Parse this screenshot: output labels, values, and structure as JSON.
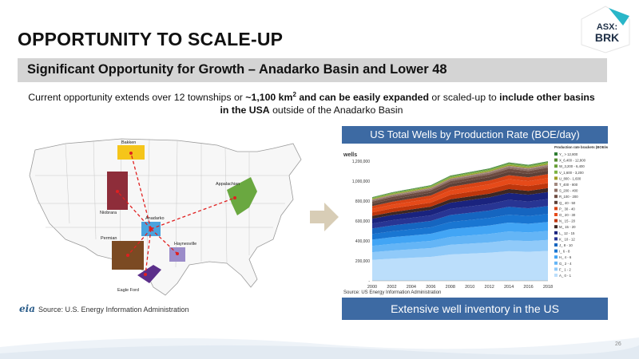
{
  "slide": {
    "title": "OPPORTUNITY TO SCALE-UP",
    "subtitle": "Significant Opportunity for Growth – Anadarko Basin and Lower 48",
    "intro_parts": {
      "p1": "Current opportunity extends over 12 townships or ",
      "b1": "~1,100 km",
      "sup": "2",
      "b2": " and can be easily expanded",
      "p2": " or scaled-up to ",
      "b3": "include other basins in the USA",
      "p3": " outside of the Anadarko Basin"
    },
    "logo": {
      "line1": "ASX:",
      "line2": "BRK"
    },
    "page_number": "26"
  },
  "map": {
    "basins": [
      "Bakken",
      "Niobrara",
      "Appalachian",
      "Anadarko",
      "Permian",
      "Haynesville",
      "Eagle Ford"
    ],
    "source": "Source: U.S. Energy Information Administration",
    "source_logo": "eia"
  },
  "chart_data": {
    "type": "area",
    "title": "US Total Wells by Production Rate (BOE/day)",
    "ylabel": "wells",
    "x": [
      2000,
      2002,
      2004,
      2006,
      2008,
      2010,
      2012,
      2014,
      2016,
      2018
    ],
    "x_ticks": [
      "2000",
      "2002",
      "2004",
      "2006",
      "2008",
      "2010",
      "2012",
      "2014",
      "2016",
      "2018"
    ],
    "ylim": [
      0,
      1200000
    ],
    "y_ticks": [
      "-",
      "200,000",
      "400,000",
      "600,000",
      "800,000",
      "1,000,000",
      "1,200,000"
    ],
    "legend_title": "Production rate brackets (BOE/well/day)",
    "legend": [
      "Y_ > 12,800",
      "X_6,400 - 12,800",
      "W_3,200 - 6,400",
      "V_1,600 - 3,200",
      "U_800 - 1,600",
      "T_400 - 800",
      "S_200 - 400",
      "R_100 - 200",
      "Q_ 40 - 50",
      "P_ 30 - 40",
      "O_ 20 - 30",
      "N_ 15 - 20",
      "M_ 15 - 20",
      "L_ 12 - 15",
      "K_ 10 - 12",
      "J_ 8 - 10",
      "I_ 6 - 8",
      "H_ 4 - 6",
      "G_ 2 - 4",
      "F_ 1 - 2",
      "A_ 0 - 1"
    ],
    "totals": [
      700000,
      740000,
      770000,
      800000,
      880000,
      910000,
      940000,
      990000,
      970000,
      1000000
    ],
    "source": "Source: US Energy Information Administration",
    "callout": "Extensive well inventory in the US"
  },
  "colors": {
    "banner": "#3d6aa3",
    "subtitle_bar": "#d4d4d4",
    "logo_teal": "#29b6c8"
  }
}
